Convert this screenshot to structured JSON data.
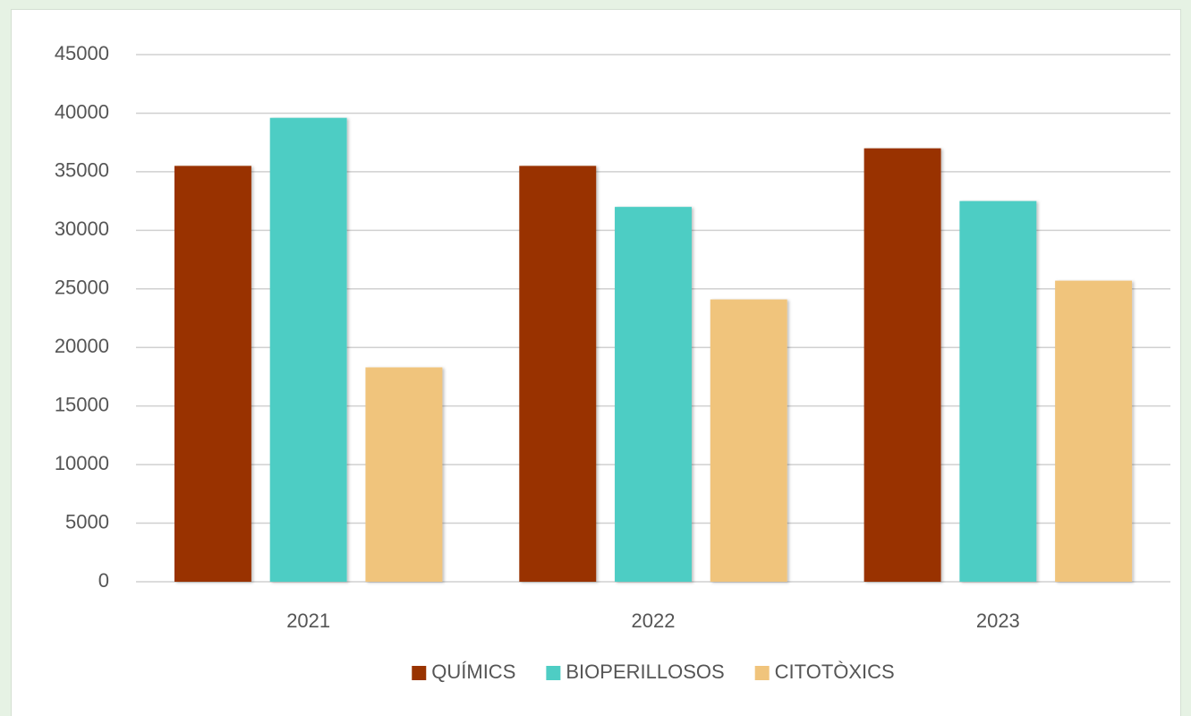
{
  "chart_data": {
    "type": "bar",
    "categories": [
      "2021",
      "2022",
      "2023"
    ],
    "series": [
      {
        "name": "QUÍMICS",
        "color": "#993300",
        "values": [
          35500,
          35500,
          37000
        ]
      },
      {
        "name": "BIOPERILLOSOS",
        "color": "#4ecdc4",
        "values": [
          39600,
          32000,
          32500
        ]
      },
      {
        "name": "CITOTÒXICS",
        "color": "#f0c47c",
        "values": [
          18300,
          24100,
          25700
        ]
      }
    ],
    "ylim": [
      0,
      45000
    ],
    "yticks": [
      0,
      5000,
      10000,
      15000,
      20000,
      25000,
      30000,
      35000,
      40000,
      45000
    ],
    "grid": true,
    "legend": "bottom"
  }
}
